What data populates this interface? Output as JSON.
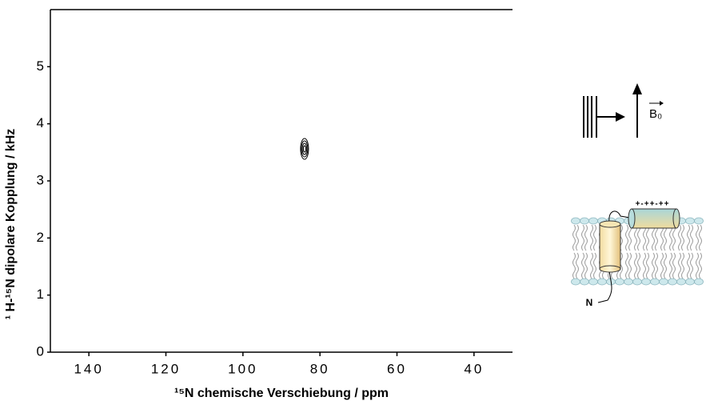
{
  "chart_data": {
    "type": "contour",
    "x_label": "¹⁵N chemische Verschiebung / ppm",
    "y_label": "¹ H-¹⁵N dipolare Kopplung  / kHz",
    "x": [
      84
    ],
    "values": [
      3.56
    ],
    "color": "#000000",
    "xlim": [
      150,
      30
    ],
    "xticks": [
      140,
      120,
      100,
      80,
      60,
      40
    ],
    "ylim": [
      0,
      6
    ],
    "yticks": [
      0,
      1,
      2,
      3,
      4,
      5
    ],
    "annotations": [
      "B₀",
      "+-++-++",
      "N"
    ]
  }
}
